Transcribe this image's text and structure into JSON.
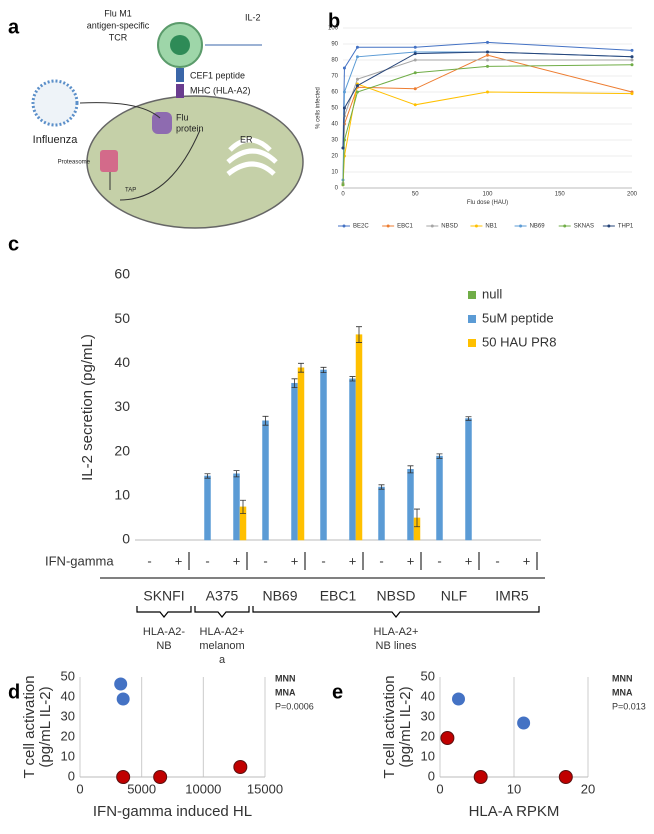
{
  "diagram": {
    "panel": "a",
    "tcell_label": [
      "Flu M1",
      "antigen-specific",
      "TCR"
    ],
    "cytokine": "IL-2",
    "peptide": "CEF1 peptide",
    "mhc": "MHC (HLA-A2)",
    "virus": "Influenza",
    "protein": [
      "Flu",
      "protein"
    ],
    "proteasome": "Proteasome",
    "tap": "TAP",
    "er": "ER"
  },
  "chart_data": [
    {
      "type": "line",
      "panel": "b",
      "ylabel": "% cells infected",
      "xlabel": "Flu dose (HAU)",
      "x": [
        0,
        1,
        10,
        50,
        100,
        200
      ],
      "xlim": [
        0,
        200
      ],
      "xticks": [
        0,
        50,
        100,
        150,
        200
      ],
      "ylim": [
        0,
        100
      ],
      "yticks": [
        0,
        10,
        20,
        30,
        40,
        50,
        60,
        70,
        80,
        90,
        100
      ],
      "grid": true,
      "legend": "bottom",
      "series": [
        {
          "name": "BE2C",
          "color": "#4472c4",
          "values": [
            25,
            75,
            88,
            88,
            91,
            86
          ]
        },
        {
          "name": "EBC1",
          "color": "#ed7d31",
          "values": [
            2,
            40,
            63,
            62,
            83,
            60
          ]
        },
        {
          "name": "NBSD",
          "color": "#a5a5a5",
          "values": [
            3,
            45,
            68,
            80,
            80,
            80
          ]
        },
        {
          "name": "NB1",
          "color": "#ffc000",
          "values": [
            2,
            20,
            65,
            52,
            60,
            59
          ]
        },
        {
          "name": "NB69",
          "color": "#5b9bd5",
          "values": [
            5,
            60,
            82,
            85,
            85,
            82
          ]
        },
        {
          "name": "SKNAS",
          "color": "#70ad47",
          "values": [
            2,
            30,
            60,
            72,
            76,
            77
          ]
        },
        {
          "name": "THP1",
          "color": "#264478",
          "values": [
            25,
            50,
            64,
            84,
            85,
            82
          ]
        }
      ]
    },
    {
      "type": "bar",
      "panel": "c",
      "ylabel": "IL-2 secretion (pg/mL)",
      "xlabel": "IFN-gamma",
      "categories": [
        "-",
        "+",
        "-",
        "+",
        "-",
        "+",
        "-",
        "+",
        "-",
        "+",
        "-",
        "+",
        "-",
        "+"
      ],
      "groups": [
        "SKNFI",
        "A375",
        "NB69",
        "EBC1",
        "NBSD",
        "NLF",
        "IMR5"
      ],
      "super_groups": [
        [
          "HLA-A2-",
          "NB"
        ],
        [
          "HLA-A2+",
          "melanom",
          "a"
        ],
        [
          "HLA-A2+",
          "NB lines"
        ]
      ],
      "ylim": [
        0,
        60
      ],
      "yticks": [
        0,
        10,
        20,
        30,
        40,
        50,
        60
      ],
      "grid": false,
      "legend": "upper right",
      "series": [
        {
          "name": "null",
          "color": "#70ad47",
          "values": [
            0,
            0,
            0,
            0,
            0,
            0,
            0,
            0,
            0,
            0,
            0,
            0,
            0,
            0
          ],
          "errors": [
            null,
            null,
            null,
            null,
            null,
            null,
            null,
            null,
            null,
            null,
            null,
            null,
            null,
            null
          ]
        },
        {
          "name": "5uM peptide",
          "color": "#5b9bd5",
          "values": [
            0,
            0,
            14.5,
            15,
            27,
            35.5,
            38.5,
            36.5,
            12,
            16,
            19,
            27.5,
            0,
            0
          ],
          "errors": [
            null,
            null,
            0.5,
            0.7,
            1,
            1,
            0.6,
            0.5,
            0.5,
            0.8,
            0.5,
            0.4,
            null,
            null
          ]
        },
        {
          "name": "50 HAU PR8",
          "color": "#ffc000",
          "values": [
            null,
            0,
            null,
            7.5,
            null,
            39,
            null,
            46.5,
            null,
            5,
            null,
            0,
            null,
            0
          ],
          "errors": [
            null,
            null,
            null,
            1.5,
            null,
            1,
            null,
            1.8,
            null,
            2,
            null,
            null,
            null,
            null
          ]
        }
      ]
    },
    {
      "type": "scatter",
      "panel": "d",
      "ylabel": [
        "T cell activation",
        "(pg/mL IL-2)"
      ],
      "xlabel": "IFN-gamma induced HL",
      "xlim": [
        0,
        15000
      ],
      "xticks": [
        0,
        5000,
        10000,
        15000
      ],
      "ylim": [
        0,
        50
      ],
      "yticks": [
        0,
        10,
        20,
        30,
        40,
        50
      ],
      "grid": "x",
      "annotation": "P=0.0006",
      "series": [
        {
          "name": "MNN",
          "color": "#4472c4",
          "x": [
            3300,
            3500
          ],
          "values": [
            46.5,
            39
          ]
        },
        {
          "name": "MNA",
          "color": "#c00000",
          "x": [
            3500,
            6500,
            13000
          ],
          "values": [
            0,
            0,
            5
          ]
        }
      ]
    },
    {
      "type": "scatter",
      "panel": "e",
      "ylabel": [
        "T cell activation",
        "(pg/mL IL-2)"
      ],
      "xlabel": "HLA-A RPKM",
      "xlim": [
        0,
        20
      ],
      "xticks": [
        0,
        10,
        20
      ],
      "ylim": [
        0,
        50
      ],
      "yticks": [
        0,
        10,
        20,
        30,
        40,
        50
      ],
      "grid": "x",
      "annotation": "P=0.013",
      "series": [
        {
          "name": "MNN",
          "color": "#4472c4",
          "x": [
            2.5,
            11.3
          ],
          "values": [
            39,
            27
          ]
        },
        {
          "name": "MNA",
          "color": "#c00000",
          "x": [
            1,
            5.5,
            17
          ],
          "values": [
            19.5,
            0,
            0
          ]
        }
      ]
    }
  ]
}
